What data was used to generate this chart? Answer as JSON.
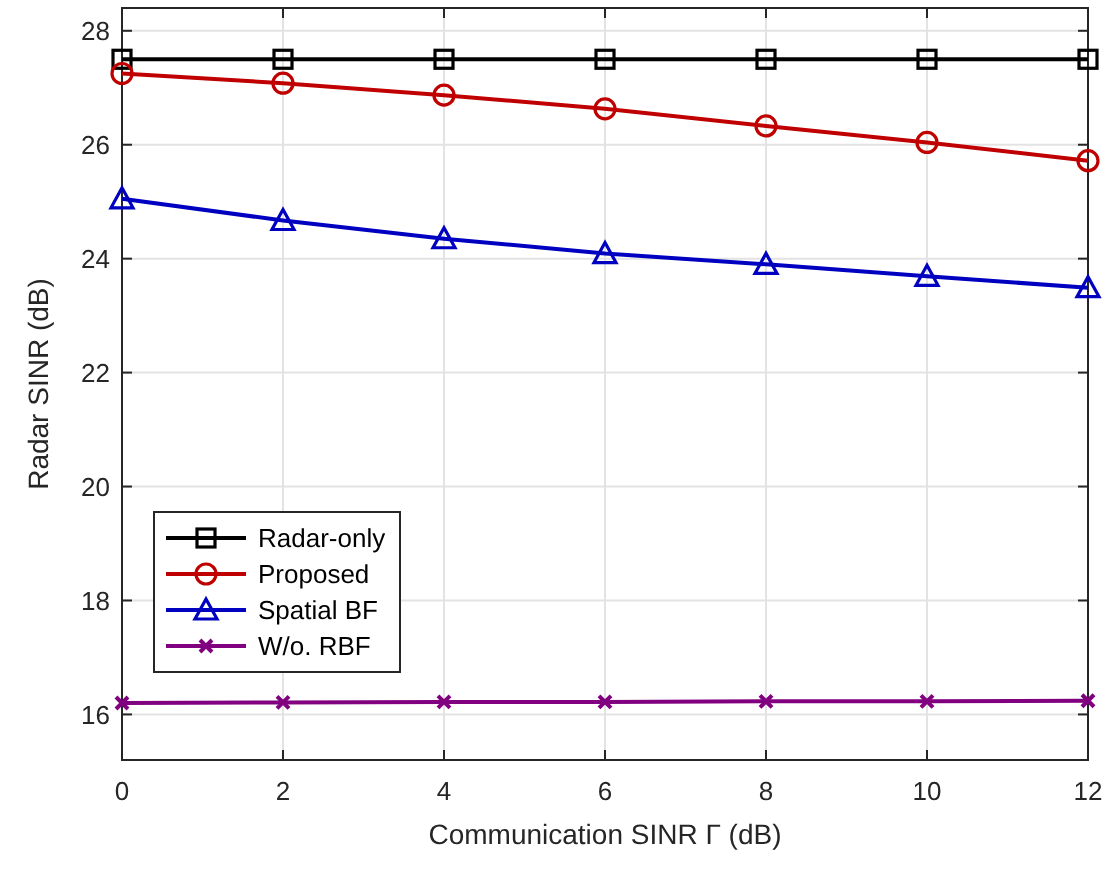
{
  "chart_data": {
    "type": "line",
    "xlabel": "Communication SINR Γ (dB)",
    "ylabel": "Radar SINR (dB)",
    "x": [
      0,
      2,
      4,
      6,
      8,
      10,
      12
    ],
    "xlim": [
      0,
      12
    ],
    "xticks": [
      0,
      2,
      4,
      6,
      8,
      10,
      12
    ],
    "ylim": [
      15.2,
      28.4
    ],
    "yticks": [
      16,
      18,
      20,
      22,
      24,
      26,
      28
    ],
    "grid": true,
    "legend": "bottom left",
    "line_style": "solid",
    "series": [
      {
        "name": "Radar-only",
        "color": "#000000",
        "marker": "square",
        "values": [
          27.5,
          27.5,
          27.5,
          27.5,
          27.5,
          27.5,
          27.5
        ]
      },
      {
        "name": "Proposed",
        "color": "#c00000",
        "marker": "circle",
        "values": [
          27.25,
          27.08,
          26.87,
          26.63,
          26.33,
          26.04,
          25.72
        ]
      },
      {
        "name": "Spatial BF",
        "color": "#0000c0",
        "marker": "triangle",
        "values": [
          25.05,
          24.67,
          24.35,
          24.09,
          23.9,
          23.69,
          23.49
        ]
      },
      {
        "name": "W/o. RBF",
        "color": "#800080",
        "marker": "cross",
        "values": [
          16.2,
          16.21,
          16.22,
          16.22,
          16.23,
          16.23,
          16.24
        ]
      }
    ]
  }
}
